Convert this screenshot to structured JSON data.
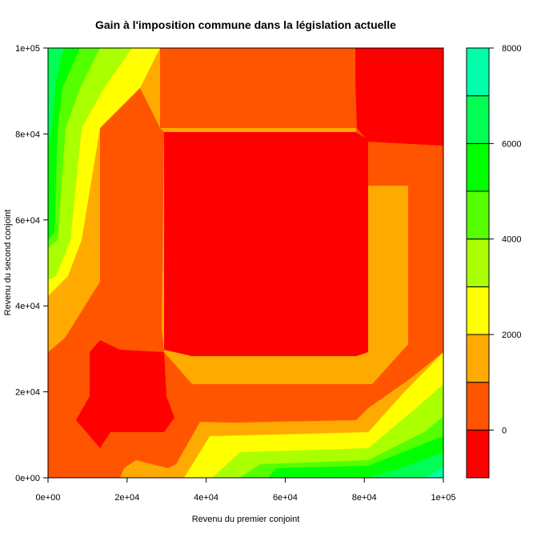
{
  "chart_data": {
    "type": "heatmap",
    "subtype": "filled-contour",
    "title": "Gain à l'imposition commune dans la législation actuelle",
    "xlabel": "Revenu du premier conjoint",
    "ylabel": "Revenu du second conjoint",
    "xlim": [
      0,
      100000
    ],
    "ylim": [
      0,
      100000
    ],
    "x_ticks": [
      0,
      20000,
      40000,
      60000,
      80000,
      100000
    ],
    "x_tick_labels": [
      "0e+00",
      "2e+04",
      "4e+04",
      "6e+04",
      "8e+04",
      "1e+05"
    ],
    "y_ticks": [
      0,
      20000,
      40000,
      60000,
      80000,
      100000
    ],
    "y_tick_labels": [
      "0e+00",
      "2e+04",
      "4e+04",
      "6e+04",
      "8e+04",
      "1e+05"
    ],
    "levels": [
      -1000,
      0,
      1000,
      2000,
      3000,
      4000,
      5000,
      6000,
      7000,
      8000
    ],
    "level_colors": [
      "#FF0000",
      "#FF5500",
      "#FFAA00",
      "#FFFF00",
      "#AAFF00",
      "#55FF00",
      "#00FF00",
      "#00FF55",
      "#00FFAA"
    ],
    "colorbar_ticks": [
      0,
      2000,
      4000,
      6000,
      8000
    ],
    "colorbar_tick_labels": [
      "0",
      "2000",
      "4000",
      "6000",
      "8000"
    ],
    "legend": "right (colour bar)",
    "grid": false,
    "bands": [
      {
        "level": 2,
        "x": [
          0,
          100000
        ],
        "y": [
          0,
          100000
        ]
      },
      {
        "level": 3,
        "x": [
          0,
          6000
        ],
        "y": [
          0,
          100000
        ]
      },
      {
        "level": 4,
        "x": [
          0,
          4000
        ],
        "y": [
          0,
          100000
        ]
      },
      {
        "level": 5,
        "x": [
          0,
          2000
        ],
        "y": [
          0,
          100000
        ]
      },
      {
        "level": 3,
        "x": [
          0,
          100000
        ],
        "y": [
          0,
          8000
        ]
      },
      {
        "level": 4,
        "x": [
          0,
          100000
        ],
        "y": [
          0,
          5000
        ]
      },
      {
        "level": 5,
        "x": [
          0,
          100000
        ],
        "y": [
          0,
          2000
        ]
      },
      {
        "level": 6,
        "x": [
          92000,
          100000
        ],
        "y": [
          0,
          3000
        ]
      },
      {
        "level": 1,
        "x": [
          0,
          100000
        ],
        "y": [
          0,
          100000
        ]
      },
      {
        "level": 0,
        "x": [
          0,
          100000
        ],
        "y": [
          0,
          100000
        ]
      }
    ]
  }
}
